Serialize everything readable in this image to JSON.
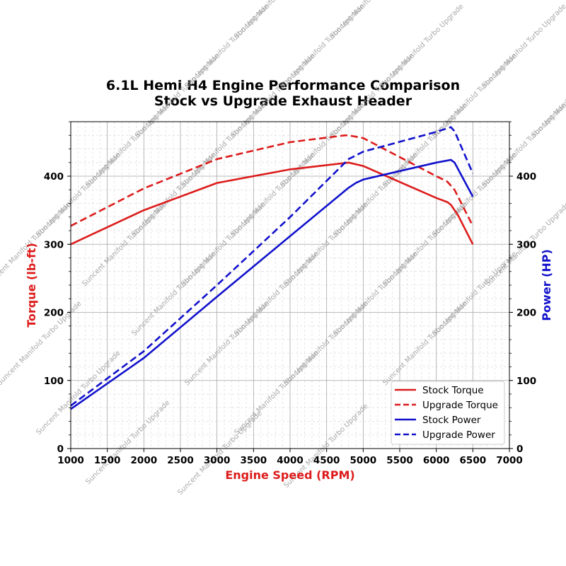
{
  "chart_data": {
    "type": "line",
    "title": "6.1L Hemi H4 Engine Performance Comparison",
    "subtitle": "Stock vs Upgrade Exhaust Header",
    "xlabel": "Engine Speed (RPM)",
    "ylabel_left": "Torque (lb-ft)",
    "ylabel_right": "Power (HP)",
    "xlim": [
      1000,
      7000
    ],
    "ylim_left": [
      0,
      480
    ],
    "ylim_right": [
      0,
      480
    ],
    "x_ticks": [
      1000,
      1500,
      2000,
      2500,
      3000,
      3500,
      4000,
      4500,
      5000,
      5500,
      6000,
      6500,
      7000
    ],
    "y_ticks_left": [
      0,
      100,
      200,
      300,
      400
    ],
    "y_ticks_right": [
      0,
      100,
      200,
      300,
      400
    ],
    "grid": true,
    "legend_position": "bottom-right",
    "watermark": "Suncent Manifold Turbo Upgrade",
    "colors": {
      "torque": "#dd1c1c",
      "power": "#1111cc"
    },
    "series": [
      {
        "name": "Stock Torque",
        "axis": "left",
        "style": "solid",
        "color": "#dd1c1c",
        "x": [
          1000,
          2000,
          3000,
          4000,
          4800,
          5000,
          6000,
          6150,
          6200,
          6300,
          6500
        ],
        "values": [
          300,
          350,
          390,
          410,
          420,
          415,
          368,
          362,
          358,
          342,
          300
        ]
      },
      {
        "name": "Upgrade Torque",
        "axis": "left",
        "style": "dashed",
        "color": "#dd1c1c",
        "x": [
          1000,
          2000,
          3000,
          4000,
          4750,
          4800,
          5000,
          6000,
          6150,
          6250,
          6500
        ],
        "values": [
          327,
          382,
          425,
          450,
          460,
          460,
          456,
          400,
          392,
          380,
          327
        ]
      },
      {
        "name": "Stock Power",
        "axis": "right",
        "style": "solid",
        "color": "#1111cc",
        "x": [
          1000,
          2000,
          3000,
          4000,
          4800,
          4900,
          5000,
          6000,
          6200,
          6250,
          6500
        ],
        "values": [
          58,
          133,
          223,
          312,
          383,
          390,
          395,
          420,
          424,
          420,
          370
        ]
      },
      {
        "name": "Upgrade Power",
        "axis": "right",
        "style": "dashed",
        "color": "#1111cc",
        "x": [
          1000,
          2000,
          3000,
          4000,
          4800,
          5000,
          6000,
          6200,
          6250,
          6500
        ],
        "values": [
          63,
          143,
          240,
          340,
          425,
          436,
          465,
          472,
          466,
          404
        ]
      }
    ]
  }
}
